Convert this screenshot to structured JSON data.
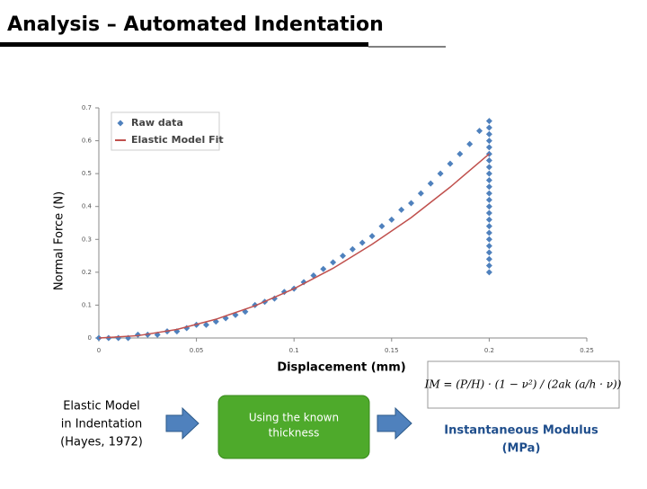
{
  "slide_title": "Analysis – Automated Indentation",
  "chart_data": {
    "type": "scatter",
    "xlabel": "Displacement (mm)",
    "ylabel": "Normal Force (N)",
    "xlim": [
      0,
      0.25
    ],
    "xticks": [
      0,
      0.05,
      0.1,
      0.15,
      0.2,
      0.25
    ],
    "ylim": [
      0,
      0.7
    ],
    "yticks": [
      0,
      0.1,
      0.2,
      0.3,
      0.4,
      0.5,
      0.6,
      0.7
    ],
    "legend": "upper left",
    "series": [
      {
        "name": "Raw data",
        "color": "#4f81bd",
        "style": "markers",
        "x": [
          0,
          0.005,
          0.01,
          0.015,
          0.02,
          0.025,
          0.03,
          0.035,
          0.04,
          0.045,
          0.05,
          0.055,
          0.06,
          0.065,
          0.07,
          0.075,
          0.08,
          0.085,
          0.09,
          0.095,
          0.1,
          0.105,
          0.11,
          0.115,
          0.12,
          0.125,
          0.13,
          0.135,
          0.14,
          0.145,
          0.15,
          0.155,
          0.16,
          0.165,
          0.17,
          0.175,
          0.18,
          0.185,
          0.19,
          0.195,
          0.2,
          0.2,
          0.2,
          0.2,
          0.2,
          0.2,
          0.2,
          0.2,
          0.2,
          0.2,
          0.2,
          0.2,
          0.2,
          0.2,
          0.2,
          0.2,
          0.2,
          0.2,
          0.2,
          0.2,
          0.2,
          0.2,
          0.2,
          0.2
        ],
        "values": [
          0,
          0,
          0,
          0,
          0.01,
          0.01,
          0.01,
          0.02,
          0.02,
          0.03,
          0.04,
          0.04,
          0.05,
          0.06,
          0.07,
          0.08,
          0.1,
          0.11,
          0.12,
          0.14,
          0.15,
          0.17,
          0.19,
          0.21,
          0.23,
          0.25,
          0.27,
          0.29,
          0.31,
          0.34,
          0.36,
          0.39,
          0.41,
          0.44,
          0.47,
          0.5,
          0.53,
          0.56,
          0.59,
          0.63,
          0.66,
          0.64,
          0.62,
          0.6,
          0.58,
          0.56,
          0.54,
          0.52,
          0.5,
          0.48,
          0.46,
          0.44,
          0.42,
          0.4,
          0.38,
          0.36,
          0.34,
          0.32,
          0.3,
          0.28,
          0.26,
          0.24,
          0.22,
          0.2
        ]
      },
      {
        "name": "Elastic Model Fit",
        "color": "#c0504d",
        "style": "line",
        "x": [
          0,
          0.02,
          0.04,
          0.06,
          0.08,
          0.1,
          0.12,
          0.14,
          0.16,
          0.18,
          0.2
        ],
        "values": [
          0,
          0.007,
          0.026,
          0.057,
          0.098,
          0.15,
          0.212,
          0.285,
          0.366,
          0.459,
          0.56
        ]
      }
    ]
  },
  "formula": "IM = (P/H) · (1 − ν²) / (2ak (a/h · ν))",
  "flow": {
    "steps": [
      [
        "Elastic Model",
        "in Indentation",
        "(Hayes, 1972)"
      ],
      [
        "Using the known",
        "thickness"
      ],
      [
        "Instantaneous Modulus",
        "(MPa)"
      ]
    ]
  }
}
